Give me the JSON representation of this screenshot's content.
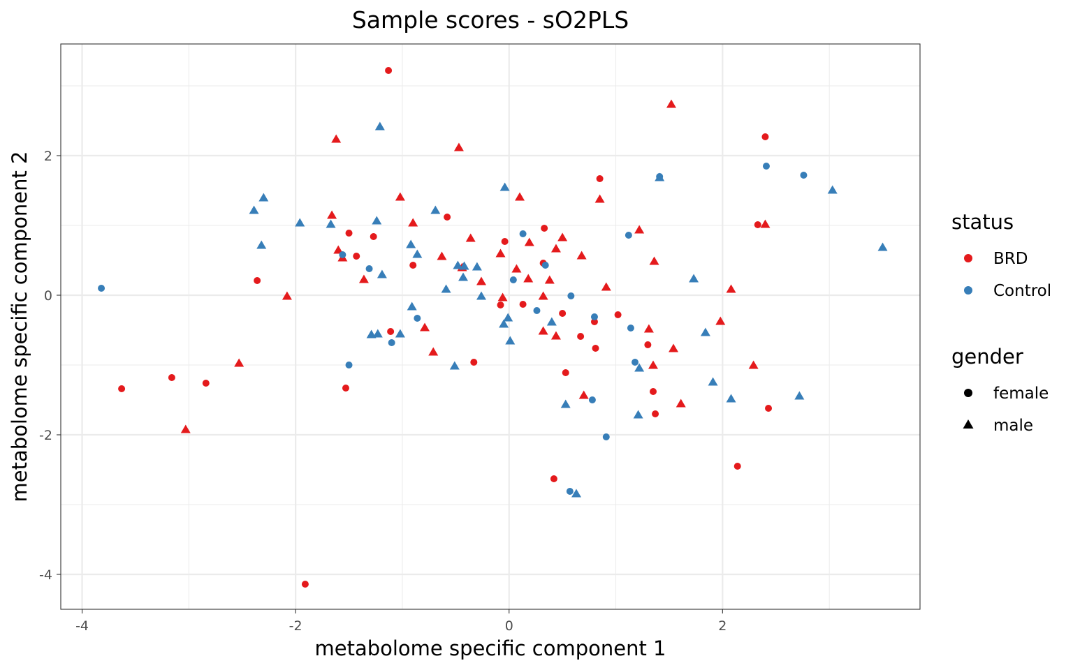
{
  "chart_data": {
    "type": "scatter",
    "title": "Sample scores - sO2PLS",
    "xlabel": "metabolome specific component 1",
    "ylabel": "metabolome specific component 2",
    "xlim": [
      -4.2,
      3.85
    ],
    "ylim": [
      -4.5,
      3.6
    ],
    "x_ticks": [
      -4,
      -2,
      0,
      2
    ],
    "x_tick_labels": [
      "-4",
      "-2",
      "0",
      "2"
    ],
    "y_ticks": [
      -4,
      -2,
      0,
      2
    ],
    "y_tick_labels": [
      "-4",
      "-2",
      "0",
      "2"
    ],
    "grid": true,
    "legend_position": "right",
    "colors": {
      "BRD": "#e41a1c",
      "Control": "#377eb8"
    },
    "legend": {
      "status": {
        "title": "status",
        "items": [
          {
            "label": "BRD",
            "color": "#e41a1c"
          },
          {
            "label": "Control",
            "color": "#377eb8"
          }
        ]
      },
      "gender": {
        "title": "gender",
        "items": [
          {
            "label": "female",
            "shape": "circle"
          },
          {
            "label": "male",
            "shape": "triangle"
          }
        ]
      }
    },
    "series": [
      {
        "status": "BRD",
        "gender": "female",
        "points": [
          [
            -1.13,
            3.22
          ],
          [
            2.4,
            2.27
          ],
          [
            0.85,
            1.67
          ],
          [
            -0.58,
            1.12
          ],
          [
            -1.5,
            0.89
          ],
          [
            -1.27,
            0.84
          ],
          [
            0.33,
            0.96
          ],
          [
            -0.04,
            0.77
          ],
          [
            -1.43,
            0.56
          ],
          [
            -0.9,
            0.43
          ],
          [
            0.32,
            0.46
          ],
          [
            -2.36,
            0.21
          ],
          [
            -0.08,
            -0.14
          ],
          [
            0.13,
            -0.13
          ],
          [
            0.5,
            -0.26
          ],
          [
            1.02,
            -0.28
          ],
          [
            0.8,
            -0.38
          ],
          [
            -1.11,
            -0.52
          ],
          [
            0.67,
            -0.59
          ],
          [
            0.81,
            -0.76
          ],
          [
            1.3,
            -0.71
          ],
          [
            -0.33,
            -0.96
          ],
          [
            0.53,
            -1.11
          ],
          [
            -3.63,
            -1.34
          ],
          [
            -3.16,
            -1.18
          ],
          [
            -2.84,
            -1.26
          ],
          [
            -1.53,
            -1.33
          ],
          [
            1.35,
            -1.38
          ],
          [
            1.37,
            -1.7
          ],
          [
            2.43,
            -1.62
          ],
          [
            2.33,
            1.01
          ],
          [
            0.42,
            -2.63
          ],
          [
            2.14,
            -2.45
          ],
          [
            -1.91,
            -4.14
          ]
        ]
      },
      {
        "status": "BRD",
        "gender": "male",
        "points": [
          [
            1.52,
            2.74
          ],
          [
            -1.62,
            2.24
          ],
          [
            -0.47,
            2.12
          ],
          [
            -1.02,
            1.41
          ],
          [
            0.1,
            1.41
          ],
          [
            0.85,
            1.38
          ],
          [
            -1.66,
            1.15
          ],
          [
            -0.9,
            1.04
          ],
          [
            2.4,
            1.02
          ],
          [
            1.22,
            0.94
          ],
          [
            -0.36,
            0.82
          ],
          [
            0.5,
            0.83
          ],
          [
            0.19,
            0.76
          ],
          [
            -1.6,
            0.65
          ],
          [
            0.44,
            0.67
          ],
          [
            -0.63,
            0.56
          ],
          [
            -1.56,
            0.54
          ],
          [
            0.68,
            0.57
          ],
          [
            -0.08,
            0.6
          ],
          [
            1.36,
            0.49
          ],
          [
            0.07,
            0.38
          ],
          [
            -0.44,
            0.4
          ],
          [
            0.38,
            0.22
          ],
          [
            -1.36,
            0.23
          ],
          [
            0.18,
            0.24
          ],
          [
            -0.26,
            0.2
          ],
          [
            0.91,
            0.12
          ],
          [
            2.08,
            0.09
          ],
          [
            -2.08,
            -0.01
          ],
          [
            0.32,
            -0.01
          ],
          [
            -0.06,
            -0.03
          ],
          [
            1.98,
            -0.37
          ],
          [
            -0.79,
            -0.46
          ],
          [
            1.31,
            -0.48
          ],
          [
            0.32,
            -0.51
          ],
          [
            0.44,
            -0.58
          ],
          [
            -0.71,
            -0.81
          ],
          [
            1.54,
            -0.76
          ],
          [
            2.29,
            -1.0
          ],
          [
            -2.53,
            -0.97
          ],
          [
            1.35,
            -1.0
          ],
          [
            0.7,
            -1.43
          ],
          [
            1.61,
            -1.55
          ],
          [
            -3.03,
            -1.92
          ]
        ]
      },
      {
        "status": "Control",
        "gender": "female",
        "points": [
          [
            2.41,
            1.85
          ],
          [
            2.76,
            1.72
          ],
          [
            1.41,
            1.7
          ],
          [
            1.12,
            0.86
          ],
          [
            0.13,
            0.88
          ],
          [
            -1.56,
            0.58
          ],
          [
            -1.31,
            0.38
          ],
          [
            0.34,
            0.43
          ],
          [
            0.04,
            0.22
          ],
          [
            0.58,
            -0.01
          ],
          [
            0.26,
            -0.22
          ],
          [
            -0.86,
            -0.33
          ],
          [
            0.8,
            -0.31
          ],
          [
            1.14,
            -0.47
          ],
          [
            -1.1,
            -0.68
          ],
          [
            -1.5,
            -1.0
          ],
          [
            1.18,
            -0.96
          ],
          [
            0.78,
            -1.5
          ],
          [
            0.91,
            -2.03
          ],
          [
            0.57,
            -2.81
          ],
          [
            -3.82,
            0.1
          ]
        ]
      },
      {
        "status": "Control",
        "gender": "male",
        "points": [
          [
            -1.21,
            2.42
          ],
          [
            -0.04,
            1.55
          ],
          [
            1.41,
            1.69
          ],
          [
            3.03,
            1.51
          ],
          [
            3.5,
            0.69
          ],
          [
            -2.3,
            1.4
          ],
          [
            -2.39,
            1.22
          ],
          [
            -0.69,
            1.22
          ],
          [
            -1.96,
            1.04
          ],
          [
            -1.67,
            1.02
          ],
          [
            -1.24,
            1.07
          ],
          [
            -2.32,
            0.72
          ],
          [
            -0.92,
            0.73
          ],
          [
            -0.86,
            0.59
          ],
          [
            -0.48,
            0.43
          ],
          [
            -0.42,
            0.42
          ],
          [
            -0.3,
            0.41
          ],
          [
            -1.19,
            0.3
          ],
          [
            -0.43,
            0.26
          ],
          [
            1.73,
            0.24
          ],
          [
            -0.59,
            0.09
          ],
          [
            -0.26,
            -0.01
          ],
          [
            -0.91,
            -0.16
          ],
          [
            -0.01,
            -0.32
          ],
          [
            -0.05,
            -0.41
          ],
          [
            0.4,
            -0.38
          ],
          [
            -1.29,
            -0.56
          ],
          [
            -1.23,
            -0.55
          ],
          [
            -1.02,
            -0.55
          ],
          [
            0.01,
            -0.65
          ],
          [
            -0.51,
            -1.01
          ],
          [
            1.84,
            -0.53
          ],
          [
            1.22,
            -1.04
          ],
          [
            1.91,
            -1.24
          ],
          [
            2.08,
            -1.48
          ],
          [
            2.72,
            -1.44
          ],
          [
            0.53,
            -1.56
          ],
          [
            1.21,
            -1.71
          ],
          [
            0.63,
            -2.84
          ]
        ]
      }
    ]
  }
}
